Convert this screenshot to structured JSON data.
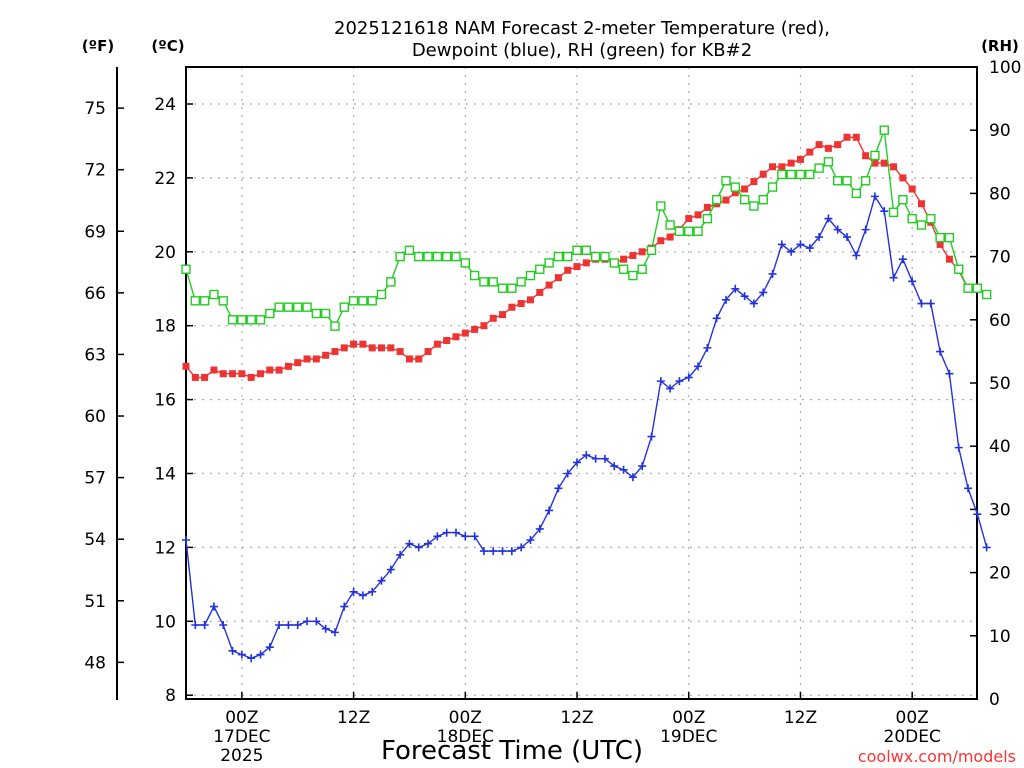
{
  "colors": {
    "temperature": "#ee3333",
    "dewpoint": "#2233dd",
    "rh": "#22cc22",
    "credit": "#ff3333"
  },
  "credit": "coolwx.com/models",
  "chart_data": {
    "type": "line",
    "title": [
      "2025121618 NAM Forecast 2-meter Temperature (red),",
      "Dewpoint (blue), RH (green) for KB#2"
    ],
    "xlabel": "Forecast Time (UTC)",
    "units": {
      "fahrenheit": "(ºF)",
      "celsius": "(ºC)",
      "rh": "(RH)"
    },
    "x_unit": "hours since 2025-12-16 18Z",
    "xlim": [
      0,
      84
    ],
    "ylim_c": [
      8,
      25
    ],
    "ylim_rh": [
      0,
      100
    ],
    "yticks_c": [
      8,
      10,
      12,
      14,
      16,
      18,
      20,
      22,
      24
    ],
    "yticks_f": [
      48,
      51,
      54,
      57,
      60,
      63,
      66,
      69,
      72,
      75
    ],
    "yticks_rh": [
      0,
      10,
      20,
      30,
      40,
      50,
      60,
      70,
      80,
      90,
      100
    ],
    "x_ticks": [
      {
        "h": 6,
        "lines": [
          "00Z",
          "17DEC",
          "2025"
        ]
      },
      {
        "h": 18,
        "lines": [
          "12Z"
        ]
      },
      {
        "h": 30,
        "lines": [
          "00Z",
          "18DEC"
        ]
      },
      {
        "h": 42,
        "lines": [
          "12Z"
        ]
      },
      {
        "h": 54,
        "lines": [
          "00Z",
          "19DEC"
        ]
      },
      {
        "h": 66,
        "lines": [
          "12Z"
        ]
      },
      {
        "h": 78,
        "lines": [
          "00Z",
          "20DEC"
        ]
      }
    ],
    "series": [
      {
        "name": "Temperature (ºC)",
        "axis": "c",
        "marker": "square-filled",
        "points": [
          [
            0,
            16.9
          ],
          [
            1,
            16.6
          ],
          [
            2,
            16.6
          ],
          [
            3,
            16.8
          ],
          [
            4,
            16.7
          ],
          [
            5,
            16.7
          ],
          [
            6,
            16.7
          ],
          [
            7,
            16.6
          ],
          [
            8,
            16.7
          ],
          [
            9,
            16.8
          ],
          [
            10,
            16.8
          ],
          [
            11,
            16.9
          ],
          [
            12,
            17.0
          ],
          [
            13,
            17.1
          ],
          [
            14,
            17.1
          ],
          [
            15,
            17.2
          ],
          [
            16,
            17.3
          ],
          [
            17,
            17.4
          ],
          [
            18,
            17.5
          ],
          [
            19,
            17.5
          ],
          [
            20,
            17.4
          ],
          [
            21,
            17.4
          ],
          [
            22,
            17.4
          ],
          [
            23,
            17.3
          ],
          [
            24,
            17.1
          ],
          [
            25,
            17.1
          ],
          [
            26,
            17.3
          ],
          [
            27,
            17.5
          ],
          [
            28,
            17.6
          ],
          [
            29,
            17.7
          ],
          [
            30,
            17.8
          ],
          [
            31,
            17.9
          ],
          [
            32,
            18.0
          ],
          [
            33,
            18.2
          ],
          [
            34,
            18.3
          ],
          [
            35,
            18.5
          ],
          [
            36,
            18.6
          ],
          [
            37,
            18.7
          ],
          [
            38,
            18.9
          ],
          [
            39,
            19.1
          ],
          [
            40,
            19.3
          ],
          [
            41,
            19.5
          ],
          [
            42,
            19.6
          ],
          [
            43,
            19.7
          ],
          [
            44,
            19.8
          ],
          [
            45,
            19.8
          ],
          [
            46,
            19.7
          ],
          [
            47,
            19.8
          ],
          [
            48,
            19.9
          ],
          [
            49,
            20.0
          ],
          [
            50,
            20.1
          ],
          [
            51,
            20.3
          ],
          [
            52,
            20.4
          ],
          [
            53,
            20.6
          ],
          [
            54,
            20.9
          ],
          [
            55,
            21.0
          ],
          [
            56,
            21.2
          ],
          [
            57,
            21.3
          ],
          [
            58,
            21.4
          ],
          [
            59,
            21.6
          ],
          [
            60,
            21.7
          ],
          [
            61,
            21.9
          ],
          [
            62,
            22.1
          ],
          [
            63,
            22.3
          ],
          [
            64,
            22.3
          ],
          [
            65,
            22.4
          ],
          [
            66,
            22.5
          ],
          [
            67,
            22.7
          ],
          [
            68,
            22.9
          ],
          [
            69,
            22.8
          ],
          [
            70,
            22.9
          ],
          [
            71,
            23.1
          ],
          [
            72,
            23.1
          ],
          [
            73,
            22.6
          ],
          [
            74,
            22.4
          ],
          [
            75,
            22.4
          ],
          [
            76,
            22.3
          ],
          [
            77,
            22.0
          ],
          [
            78,
            21.7
          ],
          [
            79,
            21.3
          ],
          [
            80,
            20.8
          ],
          [
            81,
            20.2
          ],
          [
            82,
            19.8
          ],
          [
            83,
            19.5
          ],
          [
            84,
            19.0
          ]
        ]
      },
      {
        "name": "Dewpoint (ºC)",
        "axis": "c",
        "marker": "plus",
        "points": [
          [
            0,
            12.2
          ],
          [
            1,
            9.9
          ],
          [
            2,
            9.9
          ],
          [
            3,
            10.4
          ],
          [
            4,
            9.9
          ],
          [
            5,
            9.2
          ],
          [
            6,
            9.1
          ],
          [
            7,
            9.0
          ],
          [
            8,
            9.1
          ],
          [
            9,
            9.3
          ],
          [
            10,
            9.9
          ],
          [
            11,
            9.9
          ],
          [
            12,
            9.9
          ],
          [
            13,
            10.0
          ],
          [
            14,
            10.0
          ],
          [
            15,
            9.8
          ],
          [
            16,
            9.7
          ],
          [
            17,
            10.4
          ],
          [
            18,
            10.8
          ],
          [
            19,
            10.7
          ],
          [
            20,
            10.8
          ],
          [
            21,
            11.1
          ],
          [
            22,
            11.4
          ],
          [
            23,
            11.8
          ],
          [
            24,
            12.1
          ],
          [
            25,
            12.0
          ],
          [
            26,
            12.1
          ],
          [
            27,
            12.3
          ],
          [
            28,
            12.4
          ],
          [
            29,
            12.4
          ],
          [
            30,
            12.3
          ],
          [
            31,
            12.3
          ],
          [
            32,
            11.9
          ],
          [
            33,
            11.9
          ],
          [
            34,
            11.9
          ],
          [
            35,
            11.9
          ],
          [
            36,
            12.0
          ],
          [
            37,
            12.2
          ],
          [
            38,
            12.5
          ],
          [
            39,
            13.0
          ],
          [
            40,
            13.6
          ],
          [
            41,
            14.0
          ],
          [
            42,
            14.3
          ],
          [
            43,
            14.5
          ],
          [
            44,
            14.4
          ],
          [
            45,
            14.4
          ],
          [
            46,
            14.2
          ],
          [
            47,
            14.1
          ],
          [
            48,
            13.9
          ],
          [
            49,
            14.2
          ],
          [
            50,
            15.0
          ],
          [
            51,
            16.5
          ],
          [
            52,
            16.3
          ],
          [
            53,
            16.5
          ],
          [
            54,
            16.6
          ],
          [
            55,
            16.9
          ],
          [
            56,
            17.4
          ],
          [
            57,
            18.2
          ],
          [
            58,
            18.7
          ],
          [
            59,
            19.0
          ],
          [
            60,
            18.8
          ],
          [
            61,
            18.6
          ],
          [
            62,
            18.9
          ],
          [
            63,
            19.4
          ],
          [
            64,
            20.2
          ],
          [
            65,
            20.0
          ],
          [
            66,
            20.2
          ],
          [
            67,
            20.1
          ],
          [
            68,
            20.4
          ],
          [
            69,
            20.9
          ],
          [
            70,
            20.6
          ],
          [
            71,
            20.4
          ],
          [
            72,
            19.9
          ],
          [
            73,
            20.6
          ],
          [
            74,
            21.5
          ],
          [
            75,
            21.1
          ],
          [
            76,
            19.3
          ],
          [
            77,
            19.8
          ],
          [
            78,
            19.2
          ],
          [
            79,
            18.6
          ],
          [
            80,
            18.6
          ],
          [
            81,
            17.3
          ],
          [
            82,
            16.7
          ],
          [
            83,
            14.7
          ],
          [
            84,
            13.6
          ],
          [
            85,
            12.9
          ],
          [
            86,
            12.0
          ]
        ]
      },
      {
        "name": "RH (%)",
        "axis": "rh",
        "marker": "square-open",
        "points": [
          [
            0,
            68
          ],
          [
            1,
            63
          ],
          [
            2,
            63
          ],
          [
            3,
            64
          ],
          [
            4,
            63
          ],
          [
            5,
            60
          ],
          [
            6,
            60
          ],
          [
            7,
            60
          ],
          [
            8,
            60
          ],
          [
            9,
            61
          ],
          [
            10,
            62
          ],
          [
            11,
            62
          ],
          [
            12,
            62
          ],
          [
            13,
            62
          ],
          [
            14,
            61
          ],
          [
            15,
            61
          ],
          [
            16,
            59
          ],
          [
            17,
            62
          ],
          [
            18,
            63
          ],
          [
            19,
            63
          ],
          [
            20,
            63
          ],
          [
            21,
            64
          ],
          [
            22,
            66
          ],
          [
            23,
            70
          ],
          [
            24,
            71
          ],
          [
            25,
            70
          ],
          [
            26,
            70
          ],
          [
            27,
            70
          ],
          [
            28,
            70
          ],
          [
            29,
            70
          ],
          [
            30,
            69
          ],
          [
            31,
            67
          ],
          [
            32,
            66
          ],
          [
            33,
            66
          ],
          [
            34,
            65
          ],
          [
            35,
            65
          ],
          [
            36,
            66
          ],
          [
            37,
            67
          ],
          [
            38,
            68
          ],
          [
            39,
            69
          ],
          [
            40,
            70
          ],
          [
            41,
            70
          ],
          [
            42,
            71
          ],
          [
            43,
            71
          ],
          [
            44,
            70
          ],
          [
            45,
            70
          ],
          [
            46,
            69
          ],
          [
            47,
            68
          ],
          [
            48,
            67
          ],
          [
            49,
            68
          ],
          [
            50,
            71
          ],
          [
            51,
            78
          ],
          [
            52,
            75
          ],
          [
            53,
            74
          ],
          [
            54,
            74
          ],
          [
            55,
            74
          ],
          [
            56,
            76
          ],
          [
            57,
            79
          ],
          [
            58,
            82
          ],
          [
            59,
            81
          ],
          [
            60,
            79
          ],
          [
            61,
            78
          ],
          [
            62,
            79
          ],
          [
            63,
            81
          ],
          [
            64,
            83
          ],
          [
            65,
            83
          ],
          [
            66,
            83
          ],
          [
            67,
            83
          ],
          [
            68,
            84
          ],
          [
            69,
            85
          ],
          [
            70,
            82
          ],
          [
            71,
            82
          ],
          [
            72,
            80
          ],
          [
            73,
            82
          ],
          [
            74,
            86
          ],
          [
            75,
            90
          ],
          [
            76,
            77
          ],
          [
            77,
            79
          ],
          [
            78,
            76
          ],
          [
            79,
            75
          ],
          [
            80,
            76
          ],
          [
            81,
            73
          ],
          [
            82,
            73
          ],
          [
            83,
            68
          ],
          [
            84,
            65
          ],
          [
            85,
            65
          ],
          [
            86,
            64
          ]
        ]
      }
    ]
  }
}
